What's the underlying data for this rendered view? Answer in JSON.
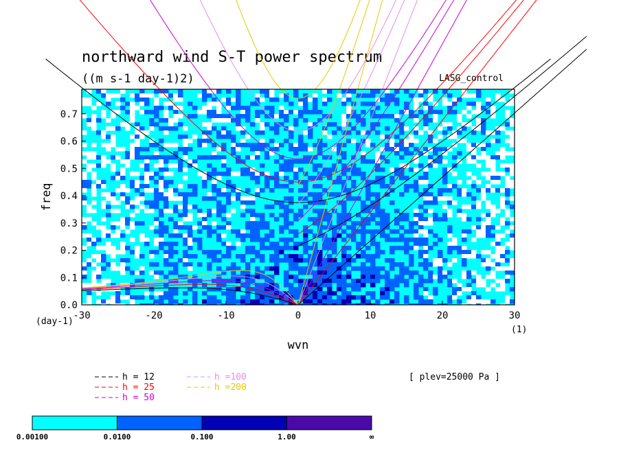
{
  "chart_data": {
    "type": "heatmap",
    "title": "northward wind S-T power spectrum",
    "units": "((m s-1 day-1)2)",
    "case_label": "LASG_control",
    "annotation": "[ plev=25000 Pa ]",
    "xlabel": "wvn",
    "ylabel": "freq",
    "x_unit": "(1)",
    "y_unit": "(day-1)",
    "xlim": [
      -30,
      30
    ],
    "ylim": [
      0,
      0.79
    ],
    "x_ticks": [
      -30,
      -20,
      -10,
      0,
      10,
      20,
      30
    ],
    "x_tick_labels": [
      "-30",
      "-20",
      "-10",
      "0",
      "10",
      "20",
      "30"
    ],
    "y_ticks": [
      0.0,
      0.1,
      0.2,
      0.3,
      0.4,
      0.5,
      0.6,
      0.7
    ],
    "y_tick_labels": [
      "0.0",
      "0.1",
      "0.2",
      "0.3",
      "0.4",
      "0.5",
      "0.6",
      "0.7"
    ],
    "color_levels": {
      "boundaries": [
        "0.00100",
        "0.0100",
        "0.100",
        "1.00",
        "∞"
      ],
      "colors": [
        "#00ffff",
        "#0062ff",
        "#0000b4",
        "#4b0aa8"
      ],
      "below_color": "#ffffff"
    },
    "dispersion_curves": [
      {
        "label": "h = 12",
        "h": 12,
        "color": "#000000"
      },
      {
        "label": "h = 25",
        "h": 25,
        "color": "#ff0000"
      },
      {
        "label": "h = 50",
        "h": 50,
        "color": "#cc00cc"
      },
      {
        "label": "h =100",
        "h": 100,
        "color": "#e68ce6"
      },
      {
        "label": "h =200",
        "h": 200,
        "color": "#e6c800"
      }
    ],
    "legend_placement": "bottom-left",
    "grid": false
  }
}
